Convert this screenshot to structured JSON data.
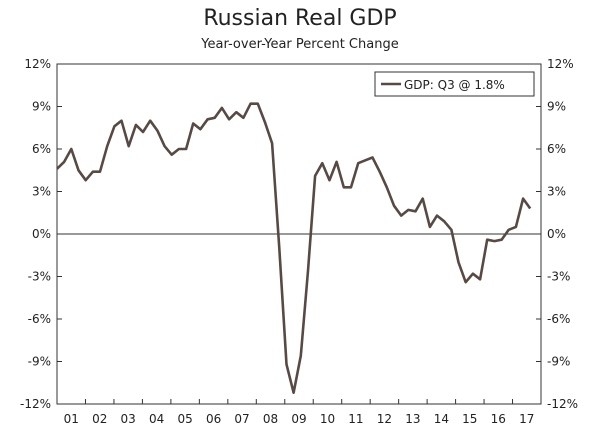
{
  "chart_data": {
    "type": "line",
    "title": "Russian Real GDP",
    "subtitle": "Year-over-Year Percent Change",
    "ylim": [
      -12,
      12
    ],
    "yticks": [
      12,
      9,
      6,
      3,
      0,
      -3,
      -6,
      -9,
      -12
    ],
    "ytick_labels": [
      "12%",
      "9%",
      "6%",
      "3%",
      "0%",
      "-3%",
      "-6%",
      "-9%",
      "-12%"
    ],
    "xlim": [
      2001.0,
      2017.875
    ],
    "xtick_labels": [
      "01",
      "02",
      "03",
      "04",
      "05",
      "06",
      "07",
      "08",
      "09",
      "10",
      "11",
      "12",
      "13",
      "14",
      "15",
      "16",
      "17"
    ],
    "grid": false,
    "zero_line": true,
    "legend": {
      "entry": "GDP: Q3 @ 1.8%",
      "placement": "top-right"
    },
    "line_color": "#574a44",
    "series": [
      {
        "name": "GDP: Q3 @ 1.8%",
        "x": [
          2001.0,
          2001.25,
          2001.5,
          2001.75,
          2002.0,
          2002.25,
          2002.5,
          2002.75,
          2003.0,
          2003.25,
          2003.5,
          2003.75,
          2004.0,
          2004.25,
          2004.5,
          2004.75,
          2005.0,
          2005.25,
          2005.5,
          2005.75,
          2006.0,
          2006.25,
          2006.5,
          2006.75,
          2007.0,
          2007.25,
          2007.5,
          2007.75,
          2008.0,
          2008.25,
          2008.5,
          2008.75,
          2009.0,
          2009.25,
          2009.5,
          2009.75,
          2010.0,
          2010.25,
          2010.5,
          2010.75,
          2011.0,
          2011.25,
          2011.5,
          2011.75,
          2012.0,
          2012.25,
          2012.5,
          2012.75,
          2013.0,
          2013.25,
          2013.5,
          2013.75,
          2014.0,
          2014.25,
          2014.5,
          2014.75,
          2015.0,
          2015.25,
          2015.5,
          2015.75,
          2016.0,
          2016.25,
          2016.5,
          2016.75,
          2017.0,
          2017.25,
          2017.5
        ],
        "values": [
          4.6,
          5.1,
          6.0,
          4.5,
          3.8,
          4.4,
          4.4,
          6.2,
          7.6,
          8.0,
          6.2,
          7.7,
          7.2,
          8.0,
          7.3,
          6.2,
          5.6,
          6.0,
          6.0,
          7.8,
          7.4,
          8.1,
          8.2,
          8.9,
          8.1,
          8.6,
          8.2,
          9.2,
          9.2,
          7.9,
          6.4,
          -1.0,
          -9.2,
          -11.2,
          -8.6,
          -2.6,
          4.1,
          5.0,
          3.8,
          5.1,
          3.3,
          3.3,
          5.0,
          5.2,
          5.4,
          4.4,
          3.3,
          2.0,
          1.3,
          1.7,
          1.6,
          2.5,
          0.5,
          1.3,
          0.9,
          0.3,
          -2.0,
          -3.4,
          -2.8,
          -3.2,
          -0.4,
          -0.5,
          -0.4,
          0.3,
          0.5,
          2.5,
          1.8
        ]
      }
    ]
  }
}
